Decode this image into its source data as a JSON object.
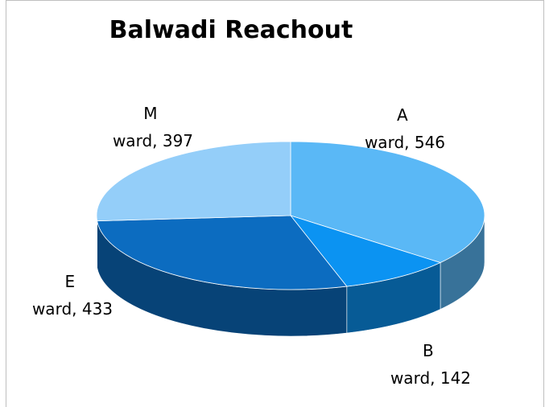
{
  "chart_data": {
    "type": "pie",
    "title": "Balwadi  Reachout",
    "values": [
      546,
      142,
      433,
      397
    ],
    "value_labels": [
      "A ward, 546",
      "B ward, 142",
      "E ward, 433",
      "M ward, 397"
    ],
    "colors": [
      "#5ab8f6",
      "#0b93f2",
      "#0c6cc0",
      "#94cef9"
    ]
  }
}
